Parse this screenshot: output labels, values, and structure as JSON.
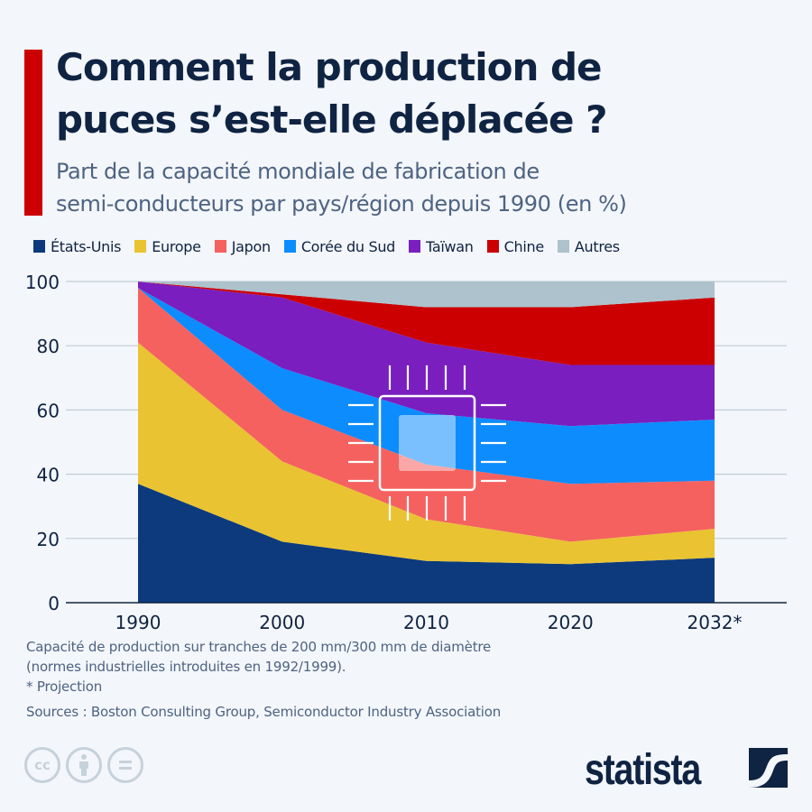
{
  "header": {
    "title_line1": "Comment la production de",
    "title_line2": "puces s’est-elle déplacée ?",
    "subtitle_line1": "Part de la capacité mondiale de fabrication de",
    "subtitle_line2": "semi-conducteurs par pays/région depuis 1990 (en %)",
    "accent_color": "#cc0000"
  },
  "legend": [
    {
      "label": "États-Unis",
      "color": "#0c3a7d"
    },
    {
      "label": "Europe",
      "color": "#e9c332"
    },
    {
      "label": "Japon",
      "color": "#f5615f"
    },
    {
      "label": "Corée du Sud",
      "color": "#0d8cfd"
    },
    {
      "label": "Taïwan",
      "color": "#7a1ebf"
    },
    {
      "label": "Chine",
      "color": "#cc0000"
    },
    {
      "label": "Autres",
      "color": "#adc2cd"
    }
  ],
  "chart_data": {
    "type": "area",
    "stacked": true,
    "title": "Part de la capacité mondiale de fabrication de semi-conducteurs par pays/région depuis 1990 (en %)",
    "xlabel": "",
    "ylabel": "",
    "categories": [
      "1990",
      "2000",
      "2010",
      "2020",
      "2032*"
    ],
    "ylim": [
      0,
      100
    ],
    "yticks": [
      0,
      20,
      40,
      60,
      80,
      100
    ],
    "grid": true,
    "legend_position": "top",
    "series": [
      {
        "name": "États-Unis",
        "color": "#0c3a7d",
        "values": [
          37,
          19,
          13,
          12,
          14
        ]
      },
      {
        "name": "Europe",
        "color": "#e9c332",
        "values": [
          44,
          25,
          13,
          7,
          9
        ]
      },
      {
        "name": "Japon",
        "color": "#f5615f",
        "values": [
          17,
          16,
          17,
          18,
          15
        ]
      },
      {
        "name": "Corée du Sud",
        "color": "#0d8cfd",
        "values": [
          0,
          13,
          16,
          18,
          19
        ]
      },
      {
        "name": "Taïwan",
        "color": "#7a1ebf",
        "values": [
          2,
          22,
          22,
          19,
          17
        ]
      },
      {
        "name": "Chine",
        "color": "#cc0000",
        "values": [
          0,
          1,
          11,
          18,
          21
        ]
      },
      {
        "name": "Autres",
        "color": "#adc2cd",
        "values": [
          0,
          4,
          8,
          8,
          5
        ]
      }
    ]
  },
  "notes": {
    "line1": "Capacité de production sur tranches de 200 mm/300 mm de diamètre",
    "line2": "(normes industrielles introduites en 1992/1999).",
    "line3": "* Projection",
    "sources": "Sources : Boston Consulting Group, Semiconductor Industry Association"
  },
  "footer": {
    "cc_icons": [
      "cc-icon",
      "attribution-icon",
      "no-derivatives-icon"
    ],
    "cc_label": "cc",
    "brand": "statista"
  }
}
